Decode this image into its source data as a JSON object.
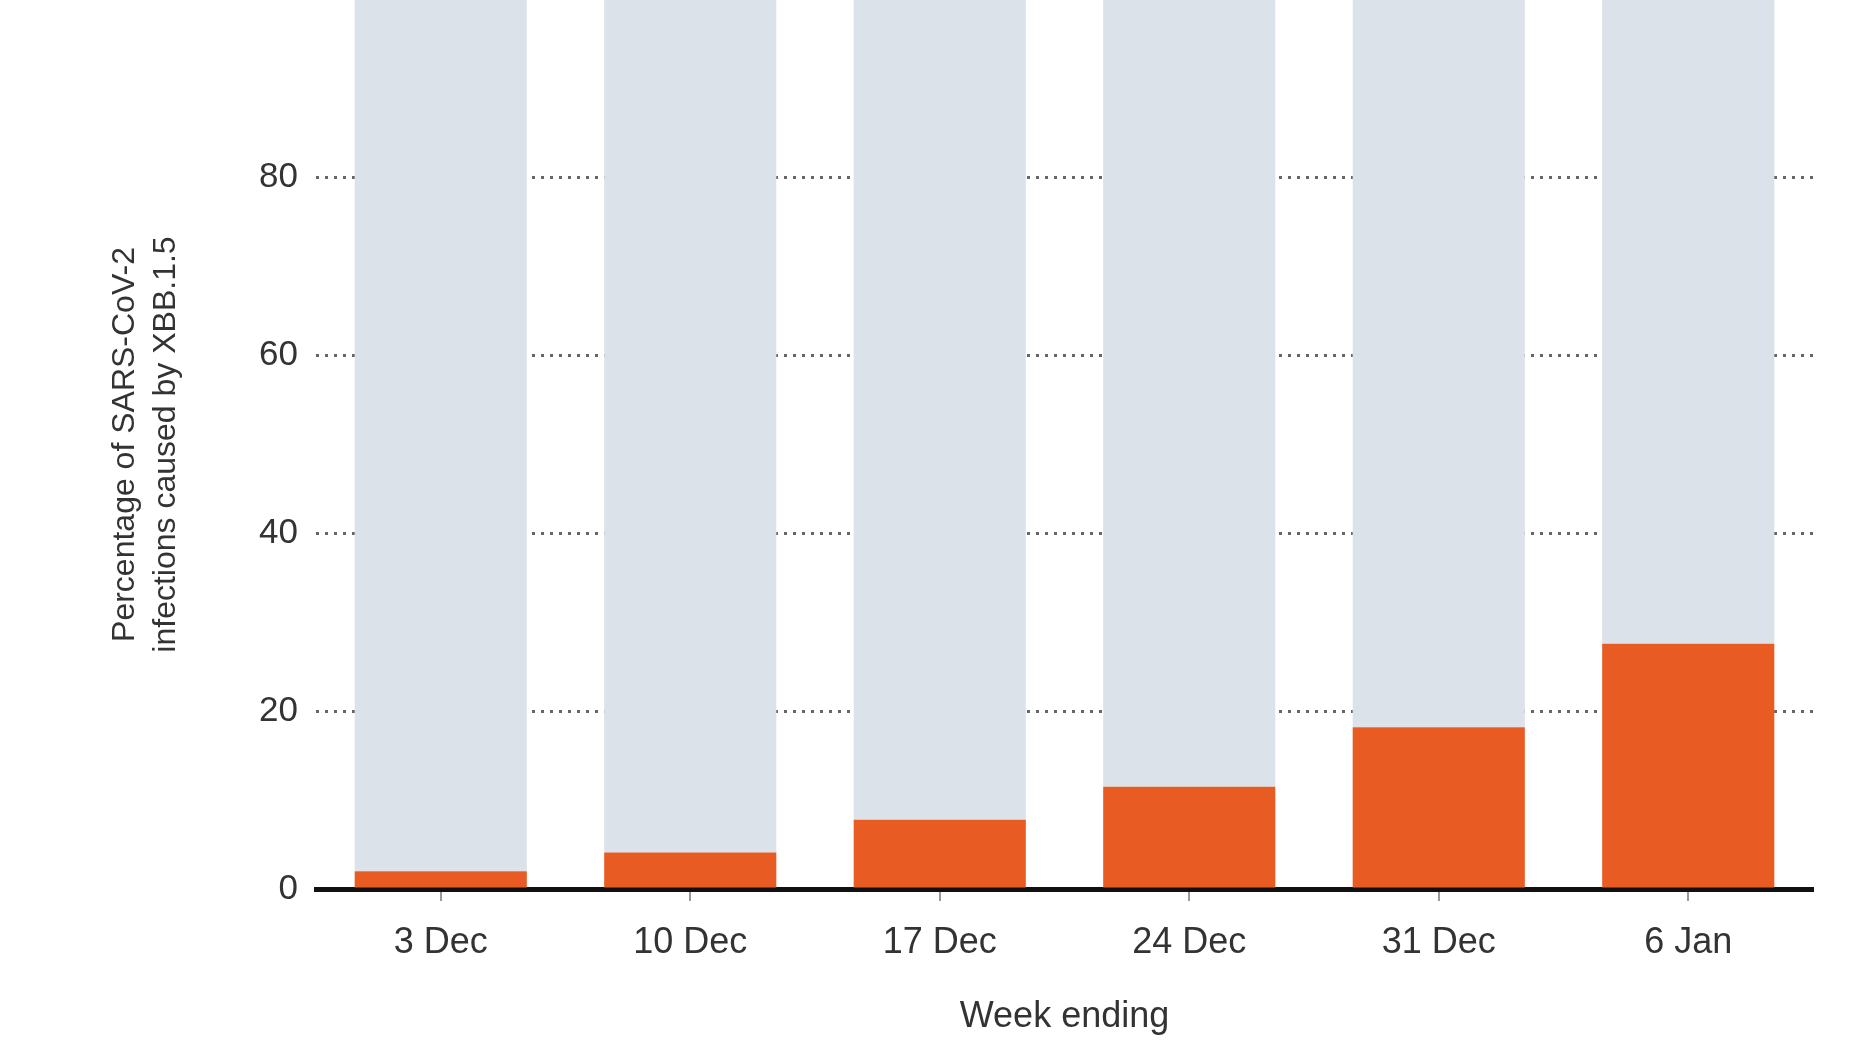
{
  "chart_data": {
    "type": "bar",
    "stacked": true,
    "categories": [
      "3 Dec",
      "10 Dec",
      "17 Dec",
      "24 Dec",
      "31 Dec",
      "6 Jan"
    ],
    "series": [
      {
        "color": "#e85c24",
        "values": [
          2.0,
          4.1,
          7.8,
          11.5,
          18.2,
          27.6
        ]
      },
      {
        "color": "#dce2ea",
        "values": [
          98.0,
          95.9,
          92.2,
          88.5,
          81.8,
          72.4
        ]
      }
    ],
    "xlabel": "Week ending",
    "ylabel": "Percentage of SARS-CoV-2\ninfections caused by XBB.1.5",
    "ylim": [
      0,
      100
    ],
    "yticks": [
      0,
      20,
      40,
      60,
      80
    ],
    "grid": "y"
  }
}
